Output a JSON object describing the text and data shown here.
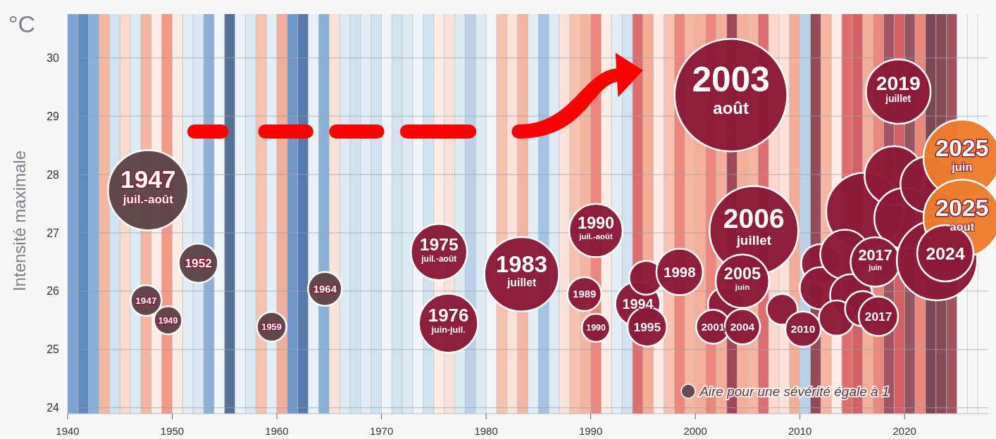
{
  "chart_data": {
    "type": "bubble",
    "ylabel": "Intensité maximale",
    "annotations": [
      "°C",
      {
        "text": "2003\naoût",
        "x": 2003.4,
        "y": 29.36
      },
      {
        "text": "2019\njuillet",
        "x": 2019.4,
        "y": 29.42
      },
      {
        "text": "1947\njuil.-août",
        "x": 1947.7,
        "y": 27.73
      },
      {
        "text": "1947",
        "x": 1947.5,
        "y": 25.84
      },
      {
        "text": "1949",
        "x": 1949.6,
        "y": 25.5
      },
      {
        "text": "1952",
        "x": 1952.5,
        "y": 26.48
      },
      {
        "text": "1959",
        "x": 1959.5,
        "y": 25.39
      },
      {
        "text": "1964",
        "x": 1964.6,
        "y": 26.04
      },
      {
        "text": "1975\njuil.-août",
        "x": 1975.5,
        "y": 26.67
      },
      {
        "text": "1976\njuin-juil.",
        "x": 1976.4,
        "y": 25.45
      },
      {
        "text": "1983\njuillet",
        "x": 1983.4,
        "y": 26.29
      },
      {
        "text": "1989",
        "x": 1989.4,
        "y": 25.95
      },
      {
        "text": "1990\njuil.-août",
        "x": 1990.5,
        "y": 27.04
      },
      {
        "text": "1990",
        "x": 1990.5,
        "y": 25.37
      },
      {
        "text": "1994",
        "x": 1994.5,
        "y": 25.78
      },
      {
        "text": "1995",
        "x": 1995.4,
        "y": 25.39
      },
      {
        "text": "1998",
        "x": 1998.5,
        "y": 26.33
      },
      {
        "text": "2001",
        "x": 2001.7,
        "y": 25.39
      },
      {
        "text": "2004",
        "x": 2004.5,
        "y": 25.39
      },
      {
        "text": "2005\njuin",
        "x": 2004.5,
        "y": 26.17
      },
      {
        "text": "2006\njuillet",
        "x": 2005.6,
        "y": 27.04
      },
      {
        "text": "2010",
        "x": 2010.3,
        "y": 25.35
      },
      {
        "text": "2017\njuin",
        "x": 2017.2,
        "y": 26.5
      },
      {
        "text": "2017",
        "x": 2017.5,
        "y": 25.57
      },
      {
        "text": "2024",
        "x": 2023.9,
        "y": 26.65
      },
      {
        "text": "2025\njuin",
        "x": 2025.5,
        "y": 28.28
      },
      {
        "text": "2025\naout",
        "x": 2025.5,
        "y": 27.25
      }
    ],
    "xlim": [
      1940,
      2028
    ],
    "ylim": [
      23.9,
      30.75
    ],
    "yticks": [
      24,
      25,
      26,
      27,
      28,
      29,
      30
    ],
    "xticks": [
      {
        "value": 1940,
        "label": "1940"
      },
      {
        "value": 1941,
        "label": null
      },
      {
        "value": 1942,
        "label": null
      },
      {
        "value": 1943,
        "label": null
      },
      {
        "value": 1944,
        "label": null
      },
      {
        "value": 1945,
        "label": null
      },
      {
        "value": 1946,
        "label": null
      },
      {
        "value": 1947,
        "label": null
      },
      {
        "value": 1948,
        "label": null
      },
      {
        "value": 1949,
        "label": null
      },
      {
        "value": 1950,
        "label": "1950"
      },
      {
        "value": 1951,
        "label": null
      },
      {
        "value": 1952,
        "label": null
      },
      {
        "value": 1953,
        "label": null
      },
      {
        "value": 1954,
        "label": null
      },
      {
        "value": 1955,
        "label": null
      },
      {
        "value": 1956,
        "label": null
      },
      {
        "value": 1957,
        "label": null
      },
      {
        "value": 1958,
        "label": null
      },
      {
        "value": 1959,
        "label": null
      },
      {
        "value": 1960,
        "label": "1960"
      },
      {
        "value": 1961,
        "label": null
      },
      {
        "value": 1962,
        "label": null
      },
      {
        "value": 1963,
        "label": null
      },
      {
        "value": 1964,
        "label": null
      },
      {
        "value": 1965,
        "label": null
      },
      {
        "value": 1966,
        "label": null
      },
      {
        "value": 1967,
        "label": null
      },
      {
        "value": 1968,
        "label": null
      },
      {
        "value": 1969,
        "label": null
      },
      {
        "value": 1970,
        "label": "1970"
      },
      {
        "value": 1971,
        "label": null
      },
      {
        "value": 1972,
        "label": null
      },
      {
        "value": 1973,
        "label": null
      },
      {
        "value": 1974,
        "label": null
      },
      {
        "value": 1975,
        "label": null
      },
      {
        "value": 1976,
        "label": null
      },
      {
        "value": 1977,
        "label": null
      },
      {
        "value": 1978,
        "label": null
      },
      {
        "value": 1979,
        "label": null
      },
      {
        "value": 1980,
        "label": "1980"
      },
      {
        "value": 1981,
        "label": null
      },
      {
        "value": 1982,
        "label": null
      },
      {
        "value": 1983,
        "label": null
      },
      {
        "value": 1984,
        "label": null
      },
      {
        "value": 1985,
        "label": null
      },
      {
        "value": 1986,
        "label": null
      },
      {
        "value": 1987,
        "label": null
      },
      {
        "value": 1988,
        "label": null
      },
      {
        "value": 1989,
        "label": null
      },
      {
        "value": 1990,
        "label": "1990"
      },
      {
        "value": 1991,
        "label": null
      },
      {
        "value": 1992,
        "label": null
      },
      {
        "value": 1993,
        "label": null
      },
      {
        "value": 1994,
        "label": null
      },
      {
        "value": 1995,
        "label": null
      },
      {
        "value": 1996,
        "label": null
      },
      {
        "value": 1997,
        "label": null
      },
      {
        "value": 1998,
        "label": null
      },
      {
        "value": 1999,
        "label": null
      },
      {
        "value": 2000,
        "label": "2000"
      },
      {
        "value": 2001,
        "label": null
      },
      {
        "value": 2002,
        "label": null
      },
      {
        "value": 2003,
        "label": null
      },
      {
        "value": 2004,
        "label": null
      },
      {
        "value": 2005,
        "label": null
      },
      {
        "value": 2006,
        "label": null
      },
      {
        "value": 2007,
        "label": null
      },
      {
        "value": 2008,
        "label": null
      },
      {
        "value": 2009,
        "label": null
      },
      {
        "value": 2010,
        "label": "2010"
      },
      {
        "value": 2011,
        "label": null
      },
      {
        "value": 2012,
        "label": null
      },
      {
        "value": 2013,
        "label": null
      },
      {
        "value": 2014,
        "label": null
      },
      {
        "value": 2015,
        "label": null
      },
      {
        "value": 2016,
        "label": null
      },
      {
        "value": 2017,
        "label": null
      },
      {
        "value": 2018,
        "label": null
      },
      {
        "value": 2019,
        "label": null
      },
      {
        "value": 2020,
        "label": "2020"
      },
      {
        "value": 2021,
        "label": null
      },
      {
        "value": 2022,
        "label": null
      },
      {
        "value": 2023,
        "label": null
      },
      {
        "value": 2024,
        "label": null
      },
      {
        "value": 2025,
        "label": null
      },
      {
        "value": 2026,
        "label": null
      },
      {
        "value": 2027,
        "label": null
      }
    ],
    "grid": true,
    "size_legend": [
      {
        "value": 1,
        "label": "Aire pour une sévérité égale à 1"
      }
    ],
    "series": [
      {
        "color": "#5e4348",
        "x": [
          1947.7,
          1947.5,
          1949.6,
          1952.5,
          1959.5,
          1964.6
        ],
        "values": [
          27.73,
          25.84,
          25.5,
          26.48,
          25.39,
          26.04
        ],
        "sizes": [
          32.5,
          4.8,
          4,
          7.8,
          4.4,
          5.8
        ]
      },
      {
        "color": "#8b1a38",
        "x": [
          1975.5,
          1976.4,
          1983.4,
          1989.4,
          1990.5,
          1990.5,
          1994.5,
          1995.3,
          1995.4,
          1998.5,
          2003.4,
          2002.9,
          2005.6,
          2008.3,
          2010.3,
          2016.2,
          2019,
          2020,
          2022.3,
          2012,
          2012,
          2014.3,
          2014.9,
          2013.5,
          2016,
          2017.2,
          2017.5,
          2019.4,
          2023.1,
          2001.7,
          2004.5,
          2004.5
        ],
        "values": [
          26.67,
          25.45,
          26.29,
          25.95,
          27.04,
          25.37,
          25.78,
          26.23,
          25.39,
          26.33,
          29.36,
          25.77,
          27.04,
          25.69,
          25.35,
          27.37,
          27.98,
          27.25,
          27.83,
          26.47,
          26.05,
          26.63,
          25.93,
          25.54,
          25.7,
          26.5,
          25.57,
          29.42,
          26.53,
          25.39,
          25.39,
          26.17
        ],
        "sizes": [
          16,
          17.6,
          28,
          5.8,
          14.4,
          4,
          10.2,
          5.8,
          7.8,
          10.9,
          64,
          6.3,
          39.7,
          4.8,
          6.3,
          30,
          17.6,
          18.5,
          16,
          7.8,
          9,
          12.3,
          9,
          6.3,
          6.3,
          12.3,
          7.8,
          21,
          32.5,
          5.8,
          6.3,
          14.4
        ]
      },
      {
        "color": "#ec7d2a",
        "x": [
          2025.5,
          2025.5
        ],
        "values": [
          28.28,
          27.25
        ],
        "sizes": [
          30,
          30
        ]
      },
      {
        "color": "#8b1a38",
        "x": [
          2023.9
        ],
        "values": [
          26.65
        ],
        "sizes": [
          16
        ]
      }
    ],
    "bands": [
      {
        "axis": "x",
        "from": 1940,
        "to": 1941,
        "color": "#5b8fc7"
      },
      {
        "axis": "x",
        "from": 1941,
        "to": 1942,
        "color": "#3a6fb0"
      },
      {
        "axis": "x",
        "from": 1942,
        "to": 1943,
        "color": "#6a9fd0"
      },
      {
        "axis": "x",
        "from": 1943,
        "to": 1944,
        "color": "#f4a68a"
      },
      {
        "axis": "x",
        "from": 1944,
        "to": 1945,
        "color": "#c6dcee"
      },
      {
        "axis": "x",
        "from": 1945,
        "to": 1946,
        "color": "#fbd0c0"
      },
      {
        "axis": "x",
        "from": 1946,
        "to": 1947,
        "color": "#d5e6f3"
      },
      {
        "axis": "x",
        "from": 1947,
        "to": 1948,
        "color": "#f5a488"
      },
      {
        "axis": "x",
        "from": 1948,
        "to": 1949,
        "color": "#fde9e0"
      },
      {
        "axis": "x",
        "from": 1949,
        "to": 1950,
        "color": "#f08068"
      },
      {
        "axis": "x",
        "from": 1950,
        "to": 1951,
        "color": "#fbe6dc"
      },
      {
        "axis": "x",
        "from": 1951,
        "to": 1952,
        "color": "#dbe9f4"
      },
      {
        "axis": "x",
        "from": 1952,
        "to": 1953,
        "color": "#cfe2f1"
      },
      {
        "axis": "x",
        "from": 1953,
        "to": 1954,
        "color": "#6f9fd0"
      },
      {
        "axis": "x",
        "from": 1954,
        "to": 1955,
        "color": "#eef4fa"
      },
      {
        "axis": "x",
        "from": 1955,
        "to": 1956,
        "color": "#2c4f80"
      },
      {
        "axis": "x",
        "from": 1956,
        "to": 1957,
        "color": "#e6eff7"
      },
      {
        "axis": "x",
        "from": 1957,
        "to": 1958,
        "color": "#d2e4f2"
      },
      {
        "axis": "x",
        "from": 1958,
        "to": 1959,
        "color": "#f7b49c"
      },
      {
        "axis": "x",
        "from": 1959,
        "to": 1960,
        "color": "#dceaf5"
      },
      {
        "axis": "x",
        "from": 1960,
        "to": 1961,
        "color": "#f29a7e"
      },
      {
        "axis": "x",
        "from": 1961,
        "to": 1962,
        "color": "#4a80bf"
      },
      {
        "axis": "x",
        "from": 1962,
        "to": 1963,
        "color": "#2d5a95"
      },
      {
        "axis": "x",
        "from": 1963,
        "to": 1964,
        "color": "#e2edf6"
      },
      {
        "axis": "x",
        "from": 1964,
        "to": 1965,
        "color": "#6a9fd0"
      },
      {
        "axis": "x",
        "from": 1965,
        "to": 1966,
        "color": "#fbdcd0"
      },
      {
        "axis": "x",
        "from": 1966,
        "to": 1967,
        "color": "#d5e6f3"
      },
      {
        "axis": "x",
        "from": 1967,
        "to": 1968,
        "color": "#c6dcee"
      },
      {
        "axis": "x",
        "from": 1968,
        "to": 1969,
        "color": "#dceaf5"
      },
      {
        "axis": "x",
        "from": 1969,
        "to": 1970,
        "color": "#c6dcee"
      },
      {
        "axis": "x",
        "from": 1970,
        "to": 1971,
        "color": "#eef4fa"
      },
      {
        "axis": "x",
        "from": 1971,
        "to": 1972,
        "color": "#c6dcee"
      },
      {
        "axis": "x",
        "from": 1972,
        "to": 1973,
        "color": "#d5e6f3"
      },
      {
        "axis": "x",
        "from": 1973,
        "to": 1974,
        "color": "#eef4fa"
      },
      {
        "axis": "x",
        "from": 1974,
        "to": 1975,
        "color": "#c6dcee"
      },
      {
        "axis": "x",
        "from": 1975,
        "to": 1976,
        "color": "#fde9e0"
      },
      {
        "axis": "x",
        "from": 1976,
        "to": 1977,
        "color": "#fbdcd0"
      },
      {
        "axis": "x",
        "from": 1977,
        "to": 1978,
        "color": "#d5e6f3"
      },
      {
        "axis": "x",
        "from": 1978,
        "to": 1979,
        "color": "#a9c8e6"
      },
      {
        "axis": "x",
        "from": 1979,
        "to": 1980,
        "color": "#d5e6f3"
      },
      {
        "axis": "x",
        "from": 1980,
        "to": 1981,
        "color": "#eef4fa"
      },
      {
        "axis": "x",
        "from": 1981,
        "to": 1982,
        "color": "#f7b49c"
      },
      {
        "axis": "x",
        "from": 1982,
        "to": 1983,
        "color": "#fbdcd0"
      },
      {
        "axis": "x",
        "from": 1983,
        "to": 1984,
        "color": "#f5a488"
      },
      {
        "axis": "x",
        "from": 1984,
        "to": 1985,
        "color": "#dceaf5"
      },
      {
        "axis": "x",
        "from": 1985,
        "to": 1986,
        "color": "#8fb5dc"
      },
      {
        "axis": "x",
        "from": 1986,
        "to": 1987,
        "color": "#d5e6f3"
      },
      {
        "axis": "x",
        "from": 1987,
        "to": 1988,
        "color": "#fbdcd0"
      },
      {
        "axis": "x",
        "from": 1988,
        "to": 1989,
        "color": "#f7b49c"
      },
      {
        "axis": "x",
        "from": 1989,
        "to": 1990,
        "color": "#f5a488"
      },
      {
        "axis": "x",
        "from": 1990,
        "to": 1991,
        "color": "#e9695a"
      },
      {
        "axis": "x",
        "from": 1991,
        "to": 1992,
        "color": "#fde9e0"
      },
      {
        "axis": "x",
        "from": 1992,
        "to": 1993,
        "color": "#dceaf5"
      },
      {
        "axis": "x",
        "from": 1993,
        "to": 1994,
        "color": "#c6dcee"
      },
      {
        "axis": "x",
        "from": 1994,
        "to": 1995,
        "color": "#d94a4a"
      },
      {
        "axis": "x",
        "from": 1995,
        "to": 1996,
        "color": "#f29a7e"
      },
      {
        "axis": "x",
        "from": 1996,
        "to": 1997,
        "color": "#fde9e0"
      },
      {
        "axis": "x",
        "from": 1997,
        "to": 1998,
        "color": "#f7b49c"
      },
      {
        "axis": "x",
        "from": 1998,
        "to": 1999,
        "color": "#e9695a"
      },
      {
        "axis": "x",
        "from": 1999,
        "to": 2000,
        "color": "#f5a488"
      },
      {
        "axis": "x",
        "from": 2000,
        "to": 2001,
        "color": "#f29a7e"
      },
      {
        "axis": "x",
        "from": 2001,
        "to": 2002,
        "color": "#e9695a"
      },
      {
        "axis": "x",
        "from": 2002,
        "to": 2003,
        "color": "#f29a7e"
      },
      {
        "axis": "x",
        "from": 2003,
        "to": 2004,
        "color": "#8b1a2e"
      },
      {
        "axis": "x",
        "from": 2004,
        "to": 2005,
        "color": "#f29a7e"
      },
      {
        "axis": "x",
        "from": 2005,
        "to": 2006,
        "color": "#f5a488"
      },
      {
        "axis": "x",
        "from": 2006,
        "to": 2007,
        "color": "#d94a4a"
      },
      {
        "axis": "x",
        "from": 2007,
        "to": 2008,
        "color": "#fbd0c0"
      },
      {
        "axis": "x",
        "from": 2008,
        "to": 2009,
        "color": "#fbdcd0"
      },
      {
        "axis": "x",
        "from": 2009,
        "to": 2010,
        "color": "#f29a7e"
      },
      {
        "axis": "x",
        "from": 2010,
        "to": 2011,
        "color": "#a9c8e6"
      },
      {
        "axis": "x",
        "from": 2011,
        "to": 2012,
        "color": "#7a1f2e"
      },
      {
        "axis": "x",
        "from": 2012,
        "to": 2013,
        "color": "#f5a488"
      },
      {
        "axis": "x",
        "from": 2013,
        "to": 2014,
        "color": "#fde9e0"
      },
      {
        "axis": "x",
        "from": 2014,
        "to": 2015,
        "color": "#d94a4a"
      },
      {
        "axis": "x",
        "from": 2015,
        "to": 2016,
        "color": "#c93a3e"
      },
      {
        "axis": "x",
        "from": 2016,
        "to": 2017,
        "color": "#f29a7e"
      },
      {
        "axis": "x",
        "from": 2017,
        "to": 2018,
        "color": "#e9695a"
      },
      {
        "axis": "x",
        "from": 2018,
        "to": 2019,
        "color": "#8b2a3a"
      },
      {
        "axis": "x",
        "from": 2019,
        "to": 2020,
        "color": "#c93a3e"
      },
      {
        "axis": "x",
        "from": 2020,
        "to": 2021,
        "color": "#7a2a3a"
      },
      {
        "axis": "x",
        "from": 2021,
        "to": 2022,
        "color": "#e9695a"
      },
      {
        "axis": "x",
        "from": 2022,
        "to": 2023,
        "color": "#5a1a28"
      },
      {
        "axis": "x",
        "from": 2023,
        "to": 2024,
        "color": "#6a1f2e"
      },
      {
        "axis": "x",
        "from": 2024,
        "to": 2025,
        "color": "#8b2a3a"
      }
    ]
  }
}
